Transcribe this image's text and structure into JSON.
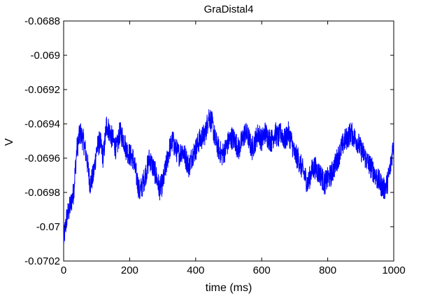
{
  "chart_data": {
    "type": "line",
    "title": "GraDistal4",
    "xlabel": "time (ms)",
    "ylabel": "V",
    "xlim": [
      0,
      1000
    ],
    "ylim": [
      -0.0702,
      -0.0688
    ],
    "x_ticks": [
      0,
      200,
      400,
      600,
      800,
      1000
    ],
    "x_tick_labels": [
      "0",
      "200",
      "400",
      "600",
      "800",
      "1000"
    ],
    "y_ticks": [
      -0.0702,
      -0.07,
      -0.0698,
      -0.0696,
      -0.0694,
      -0.0692,
      -0.069,
      -0.0688
    ],
    "y_tick_labels": [
      "-0.0702",
      "-0.07",
      "-0.0698",
      "-0.0696",
      "-0.0694",
      "-0.0692",
      "-0.069",
      "-0.0688"
    ],
    "grid": false,
    "series": [
      {
        "name": "GraDistal4",
        "color": "#0000ff",
        "x": [
          0,
          10,
          20,
          30,
          40,
          50,
          60,
          70,
          80,
          90,
          100,
          110,
          120,
          130,
          140,
          150,
          160,
          170,
          180,
          190,
          200,
          210,
          220,
          230,
          240,
          250,
          260,
          270,
          280,
          290,
          300,
          310,
          320,
          330,
          340,
          350,
          360,
          370,
          380,
          390,
          400,
          410,
          420,
          430,
          440,
          450,
          460,
          470,
          480,
          490,
          500,
          510,
          520,
          530,
          540,
          550,
          560,
          570,
          580,
          590,
          600,
          610,
          620,
          630,
          640,
          650,
          660,
          670,
          680,
          690,
          700,
          710,
          720,
          730,
          740,
          750,
          760,
          770,
          780,
          790,
          800,
          810,
          820,
          830,
          840,
          850,
          860,
          870,
          880,
          890,
          900,
          910,
          920,
          930,
          940,
          950,
          960,
          970,
          980,
          990,
          1000
        ],
        "values": [
          -0.07008,
          -0.06994,
          -0.06988,
          -0.0698,
          -0.06955,
          -0.06945,
          -0.0695,
          -0.0696,
          -0.06975,
          -0.0697,
          -0.06955,
          -0.0695,
          -0.0696,
          -0.0694,
          -0.06945,
          -0.0695,
          -0.06955,
          -0.06945,
          -0.06948,
          -0.06955,
          -0.06958,
          -0.0696,
          -0.0697,
          -0.0698,
          -0.06975,
          -0.06968,
          -0.0696,
          -0.06965,
          -0.0697,
          -0.06978,
          -0.06975,
          -0.06965,
          -0.06955,
          -0.0695,
          -0.06955,
          -0.06958,
          -0.06955,
          -0.0696,
          -0.06965,
          -0.06958,
          -0.06955,
          -0.0695,
          -0.06948,
          -0.06945,
          -0.06935,
          -0.0694,
          -0.0695,
          -0.06955,
          -0.06958,
          -0.06955,
          -0.0695,
          -0.06948,
          -0.0695,
          -0.06955,
          -0.0695,
          -0.06945,
          -0.06948,
          -0.06955,
          -0.0695,
          -0.06945,
          -0.0695,
          -0.06945,
          -0.06948,
          -0.0695,
          -0.06945,
          -0.06948,
          -0.06945,
          -0.0695,
          -0.06945,
          -0.0695,
          -0.06958,
          -0.0696,
          -0.06965,
          -0.0697,
          -0.06975,
          -0.06968,
          -0.06965,
          -0.06968,
          -0.0697,
          -0.06975,
          -0.06972,
          -0.0697,
          -0.06965,
          -0.0696,
          -0.06955,
          -0.0695,
          -0.06948,
          -0.06945,
          -0.06948,
          -0.0695,
          -0.06955,
          -0.06958,
          -0.06962,
          -0.06965,
          -0.06968,
          -0.06972,
          -0.06975,
          -0.06978,
          -0.06975,
          -0.06965,
          -0.0695
        ]
      }
    ]
  }
}
